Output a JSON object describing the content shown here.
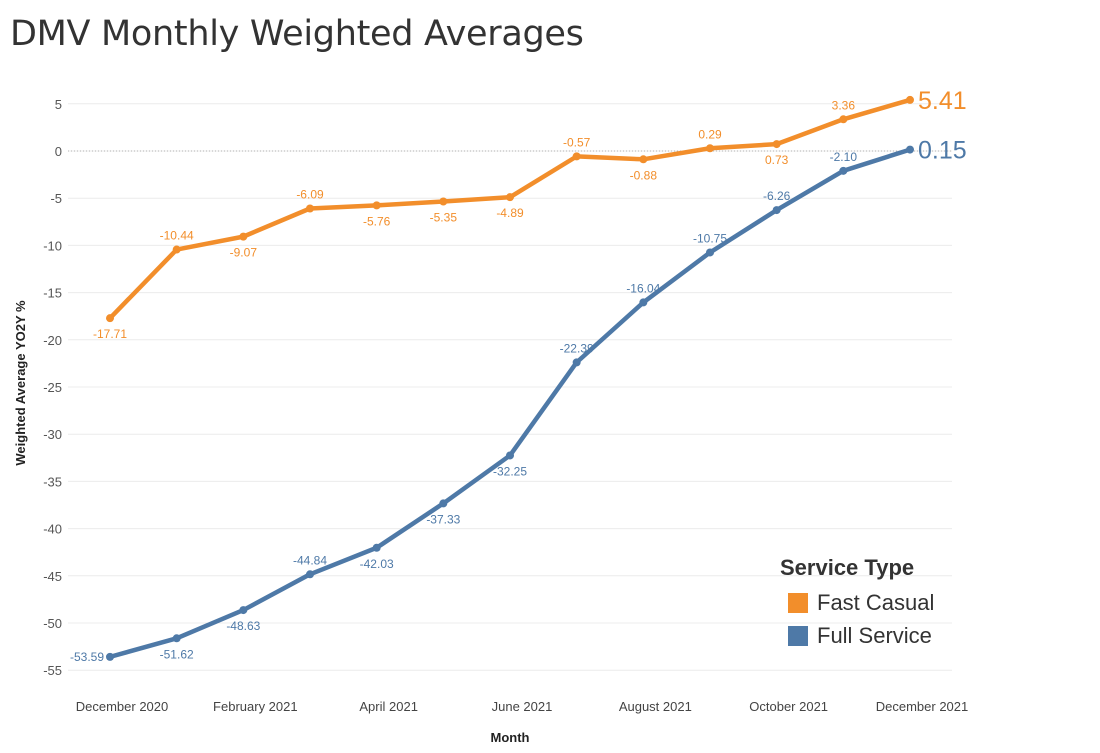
{
  "chart_data": {
    "type": "line",
    "title": "DMV Monthly Weighted Averages",
    "xlabel": "Month",
    "ylabel": "Weighted Average YO2Y %",
    "ylim": [
      -56,
      6
    ],
    "yticks": [
      5,
      0,
      -5,
      -10,
      -15,
      -20,
      -25,
      -30,
      -35,
      -40,
      -45,
      -50,
      -55
    ],
    "x": [
      "December 2020",
      "January 2021",
      "February 2021",
      "March 2021",
      "April 2021",
      "May 2021",
      "June 2021",
      "July 2021",
      "August 2021",
      "September 2021",
      "October 2021",
      "November 2021",
      "December 2021"
    ],
    "xtick_labels": [
      "December 2020",
      "February 2021",
      "April 2021",
      "June 2021",
      "August 2021",
      "October 2021",
      "December 2021"
    ],
    "series": [
      {
        "name": "Fast Casual",
        "color": "#f28e2b",
        "values": [
          -17.71,
          -10.44,
          -9.07,
          -6.09,
          -5.76,
          -5.35,
          -4.89,
          -0.57,
          -0.88,
          0.29,
          0.73,
          3.36,
          5.41
        ],
        "labels": [
          "-17.71",
          "-10.44",
          "-9.07",
          "-6.09",
          "-5.76",
          "-5.35",
          "-4.89",
          "-0.57",
          "-0.88",
          "0.29",
          "0.73",
          "3.36",
          "5.41"
        ],
        "label_pos": [
          "below",
          "above",
          "below",
          "above",
          "below",
          "below",
          "below",
          "above",
          "below",
          "above",
          "below",
          "above",
          "end"
        ]
      },
      {
        "name": "Full Service",
        "color": "#4e79a7",
        "values": [
          -53.59,
          -51.62,
          -48.63,
          -44.84,
          -42.03,
          -37.33,
          -32.25,
          -22.39,
          -16.04,
          -10.75,
          -6.26,
          -2.1,
          0.15
        ],
        "labels": [
          "-53.59",
          "-51.62",
          "-48.63",
          "-44.84",
          "-42.03",
          "-37.33",
          "-32.25",
          "-22.39",
          "-16.04",
          "-10.75",
          "-6.26",
          "-2.10",
          "0.15"
        ],
        "label_pos": [
          "left",
          "below",
          "below",
          "above",
          "below",
          "below",
          "below",
          "above",
          "above",
          "above",
          "above",
          "above",
          "end"
        ]
      }
    ],
    "legend": {
      "title": "Service Type",
      "placement": "bottom-right",
      "items": [
        "Fast Casual",
        "Full Service"
      ]
    },
    "grid": true
  }
}
